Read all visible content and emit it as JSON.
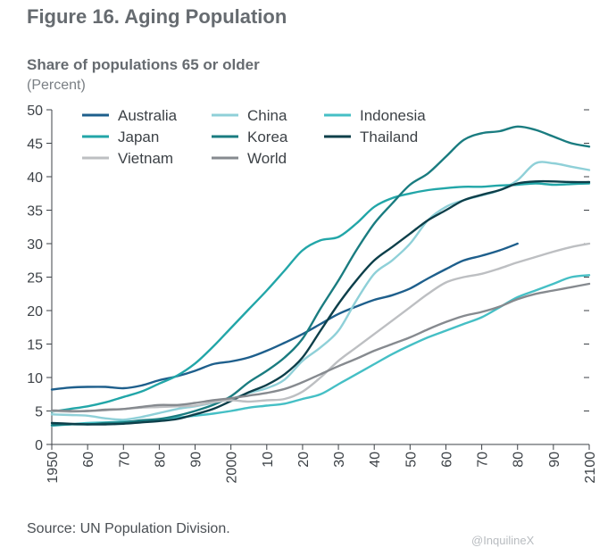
{
  "header": {
    "figure_title": "Figure 16. Aging Population",
    "source": "Source: UN Population Division.",
    "watermark": "@InquilineX"
  },
  "chart_data": {
    "type": "line",
    "title": "Share of populations 65 or older",
    "subtitle": "(Percent)",
    "xlabel": "",
    "ylabel": "",
    "xlim": [
      1950,
      2100
    ],
    "ylim": [
      0,
      50
    ],
    "grid": false,
    "legend_position": "top",
    "x_ticks": [
      {
        "x": 1950,
        "label": "1950"
      },
      {
        "x": 1960,
        "label": "60"
      },
      {
        "x": 1970,
        "label": "70"
      },
      {
        "x": 1980,
        "label": "80"
      },
      {
        "x": 1990,
        "label": "90"
      },
      {
        "x": 2000,
        "label": "2000"
      },
      {
        "x": 2010,
        "label": "10"
      },
      {
        "x": 2020,
        "label": "20"
      },
      {
        "x": 2030,
        "label": "30"
      },
      {
        "x": 2040,
        "label": "40"
      },
      {
        "x": 2050,
        "label": "50"
      },
      {
        "x": 2060,
        "label": "60"
      },
      {
        "x": 2070,
        "label": "70"
      },
      {
        "x": 2080,
        "label": "80"
      },
      {
        "x": 2090,
        "label": "90"
      },
      {
        "x": 2100,
        "label": "2100"
      }
    ],
    "y_ticks": [
      0,
      5,
      10,
      15,
      20,
      25,
      30,
      35,
      40,
      45,
      50
    ],
    "series": [
      {
        "name": "Australia",
        "color": "#1e5f8c",
        "points": [
          [
            1950,
            8.2
          ],
          [
            1955,
            8.5
          ],
          [
            1960,
            8.6
          ],
          [
            1965,
            8.6
          ],
          [
            1970,
            8.4
          ],
          [
            1975,
            8.8
          ],
          [
            1980,
            9.6
          ],
          [
            1985,
            10.2
          ],
          [
            1990,
            11.0
          ],
          [
            1995,
            12.0
          ],
          [
            2000,
            12.4
          ],
          [
            2005,
            13.0
          ],
          [
            2010,
            14.0
          ],
          [
            2015,
            15.2
          ],
          [
            2020,
            16.5
          ],
          [
            2025,
            18.0
          ],
          [
            2030,
            19.5
          ],
          [
            2035,
            20.6
          ],
          [
            2040,
            21.6
          ],
          [
            2045,
            22.3
          ],
          [
            2050,
            23.3
          ],
          [
            2055,
            24.8
          ],
          [
            2060,
            26.2
          ],
          [
            2065,
            27.5
          ],
          [
            2070,
            28.2
          ],
          [
            2075,
            29.0
          ],
          [
            2080,
            30.0
          ]
        ]
      },
      {
        "name": "China",
        "color": "#8fd0d8",
        "points": [
          [
            1950,
            4.5
          ],
          [
            1955,
            4.4
          ],
          [
            1960,
            4.3
          ],
          [
            1965,
            3.9
          ],
          [
            1970,
            3.7
          ],
          [
            1975,
            4.1
          ],
          [
            1980,
            4.7
          ],
          [
            1985,
            5.3
          ],
          [
            1990,
            5.7
          ],
          [
            1995,
            6.2
          ],
          [
            2000,
            6.8
          ],
          [
            2005,
            7.7
          ],
          [
            2010,
            8.4
          ],
          [
            2015,
            9.7
          ],
          [
            2020,
            12.5
          ],
          [
            2025,
            14.5
          ],
          [
            2030,
            17.0
          ],
          [
            2035,
            21.5
          ],
          [
            2040,
            25.5
          ],
          [
            2045,
            27.5
          ],
          [
            2050,
            30.0
          ],
          [
            2055,
            33.5
          ],
          [
            2060,
            35.5
          ],
          [
            2065,
            36.5
          ],
          [
            2070,
            37.2
          ],
          [
            2075,
            38.0
          ],
          [
            2080,
            39.5
          ],
          [
            2085,
            42.0
          ],
          [
            2090,
            42.0
          ],
          [
            2095,
            41.5
          ],
          [
            2100,
            41.0
          ]
        ]
      },
      {
        "name": "Indonesia",
        "color": "#45bfc5",
        "points": [
          [
            1950,
            2.8
          ],
          [
            1955,
            3.0
          ],
          [
            1960,
            3.2
          ],
          [
            1965,
            3.3
          ],
          [
            1970,
            3.4
          ],
          [
            1975,
            3.5
          ],
          [
            1980,
            3.7
          ],
          [
            1985,
            4.0
          ],
          [
            1990,
            4.3
          ],
          [
            1995,
            4.6
          ],
          [
            2000,
            5.0
          ],
          [
            2005,
            5.5
          ],
          [
            2010,
            5.8
          ],
          [
            2015,
            6.1
          ],
          [
            2020,
            6.8
          ],
          [
            2025,
            7.5
          ],
          [
            2030,
            9.0
          ],
          [
            2035,
            10.5
          ],
          [
            2040,
            12.0
          ],
          [
            2045,
            13.5
          ],
          [
            2050,
            14.8
          ],
          [
            2055,
            16.0
          ],
          [
            2060,
            17.0
          ],
          [
            2065,
            18.0
          ],
          [
            2070,
            19.0
          ],
          [
            2075,
            20.5
          ],
          [
            2080,
            22.0
          ],
          [
            2085,
            23.0
          ],
          [
            2090,
            24.0
          ],
          [
            2095,
            25.0
          ],
          [
            2100,
            25.3
          ]
        ]
      },
      {
        "name": "Japan",
        "color": "#22a6a8",
        "points": [
          [
            1950,
            4.9
          ],
          [
            1955,
            5.3
          ],
          [
            1960,
            5.7
          ],
          [
            1965,
            6.3
          ],
          [
            1970,
            7.1
          ],
          [
            1975,
            7.9
          ],
          [
            1980,
            9.1
          ],
          [
            1985,
            10.3
          ],
          [
            1990,
            12.1
          ],
          [
            1995,
            14.6
          ],
          [
            2000,
            17.4
          ],
          [
            2005,
            20.2
          ],
          [
            2010,
            23.0
          ],
          [
            2015,
            26.0
          ],
          [
            2020,
            29.0
          ],
          [
            2025,
            30.5
          ],
          [
            2030,
            31.0
          ],
          [
            2035,
            33.0
          ],
          [
            2040,
            35.5
          ],
          [
            2045,
            36.8
          ],
          [
            2050,
            37.5
          ],
          [
            2055,
            38.0
          ],
          [
            2060,
            38.3
          ],
          [
            2065,
            38.5
          ],
          [
            2070,
            38.5
          ],
          [
            2075,
            38.7
          ],
          [
            2080,
            38.8
          ],
          [
            2085,
            39.0
          ],
          [
            2090,
            38.8
          ],
          [
            2095,
            38.9
          ],
          [
            2100,
            39.0
          ]
        ]
      },
      {
        "name": "Korea",
        "color": "#1a7c80",
        "points": [
          [
            1950,
            2.9
          ],
          [
            1955,
            3.0
          ],
          [
            1960,
            3.0
          ],
          [
            1965,
            3.2
          ],
          [
            1970,
            3.3
          ],
          [
            1975,
            3.6
          ],
          [
            1980,
            3.8
          ],
          [
            1985,
            4.3
          ],
          [
            1990,
            5.0
          ],
          [
            1995,
            5.9
          ],
          [
            2000,
            7.2
          ],
          [
            2005,
            9.3
          ],
          [
            2010,
            11.0
          ],
          [
            2015,
            13.0
          ],
          [
            2020,
            15.8
          ],
          [
            2025,
            20.3
          ],
          [
            2030,
            24.5
          ],
          [
            2035,
            29.0
          ],
          [
            2040,
            33.0
          ],
          [
            2045,
            36.0
          ],
          [
            2050,
            38.8
          ],
          [
            2055,
            40.5
          ],
          [
            2060,
            43.0
          ],
          [
            2065,
            45.5
          ],
          [
            2070,
            46.5
          ],
          [
            2075,
            46.8
          ],
          [
            2080,
            47.5
          ],
          [
            2085,
            47.0
          ],
          [
            2090,
            46.0
          ],
          [
            2095,
            45.0
          ],
          [
            2100,
            44.5
          ]
        ]
      },
      {
        "name": "Thailand",
        "color": "#0d3f4a",
        "points": [
          [
            1950,
            3.2
          ],
          [
            1955,
            3.1
          ],
          [
            1960,
            3.0
          ],
          [
            1965,
            3.0
          ],
          [
            1970,
            3.1
          ],
          [
            1975,
            3.3
          ],
          [
            1980,
            3.5
          ],
          [
            1985,
            3.8
          ],
          [
            1990,
            4.5
          ],
          [
            1995,
            5.3
          ],
          [
            2000,
            6.5
          ],
          [
            2005,
            7.8
          ],
          [
            2010,
            8.9
          ],
          [
            2015,
            10.5
          ],
          [
            2020,
            13.0
          ],
          [
            2025,
            17.0
          ],
          [
            2030,
            21.0
          ],
          [
            2035,
            24.5
          ],
          [
            2040,
            27.5
          ],
          [
            2045,
            29.5
          ],
          [
            2050,
            31.5
          ],
          [
            2055,
            33.5
          ],
          [
            2060,
            35.0
          ],
          [
            2065,
            36.5
          ],
          [
            2070,
            37.3
          ],
          [
            2075,
            38.0
          ],
          [
            2080,
            39.0
          ],
          [
            2085,
            39.3
          ],
          [
            2090,
            39.3
          ],
          [
            2095,
            39.2
          ],
          [
            2100,
            39.2
          ]
        ]
      },
      {
        "name": "Vietnam",
        "color": "#bdbfc2",
        "points": [
          [
            1950,
            5.0
          ],
          [
            1955,
            4.9
          ],
          [
            1960,
            5.0
          ],
          [
            1965,
            5.1
          ],
          [
            1970,
            5.3
          ],
          [
            1975,
            5.5
          ],
          [
            1980,
            5.6
          ],
          [
            1985,
            5.7
          ],
          [
            1990,
            5.8
          ],
          [
            1995,
            6.3
          ],
          [
            2000,
            6.6
          ],
          [
            2005,
            6.4
          ],
          [
            2010,
            6.6
          ],
          [
            2015,
            6.8
          ],
          [
            2020,
            7.9
          ],
          [
            2025,
            10.0
          ],
          [
            2030,
            12.5
          ],
          [
            2035,
            14.5
          ],
          [
            2040,
            16.5
          ],
          [
            2045,
            18.5
          ],
          [
            2050,
            20.5
          ],
          [
            2055,
            22.5
          ],
          [
            2060,
            24.2
          ],
          [
            2065,
            25.0
          ],
          [
            2070,
            25.5
          ],
          [
            2075,
            26.3
          ],
          [
            2080,
            27.2
          ],
          [
            2085,
            28.0
          ],
          [
            2090,
            28.8
          ],
          [
            2095,
            29.5
          ],
          [
            2100,
            30.0
          ]
        ]
      },
      {
        "name": "World",
        "color": "#868a8f",
        "points": [
          [
            1950,
            5.1
          ],
          [
            1955,
            5.0
          ],
          [
            1960,
            5.0
          ],
          [
            1965,
            5.2
          ],
          [
            1970,
            5.3
          ],
          [
            1975,
            5.6
          ],
          [
            1980,
            5.9
          ],
          [
            1985,
            5.9
          ],
          [
            1990,
            6.2
          ],
          [
            1995,
            6.6
          ],
          [
            2000,
            6.9
          ],
          [
            2005,
            7.3
          ],
          [
            2010,
            7.7
          ],
          [
            2015,
            8.3
          ],
          [
            2020,
            9.3
          ],
          [
            2025,
            10.5
          ],
          [
            2030,
            11.7
          ],
          [
            2035,
            12.8
          ],
          [
            2040,
            14.0
          ],
          [
            2045,
            15.0
          ],
          [
            2050,
            16.0
          ],
          [
            2055,
            17.2
          ],
          [
            2060,
            18.3
          ],
          [
            2065,
            19.2
          ],
          [
            2070,
            19.8
          ],
          [
            2075,
            20.6
          ],
          [
            2080,
            21.7
          ],
          [
            2085,
            22.5
          ],
          [
            2090,
            23.0
          ],
          [
            2095,
            23.5
          ],
          [
            2100,
            24.0
          ]
        ]
      }
    ]
  }
}
